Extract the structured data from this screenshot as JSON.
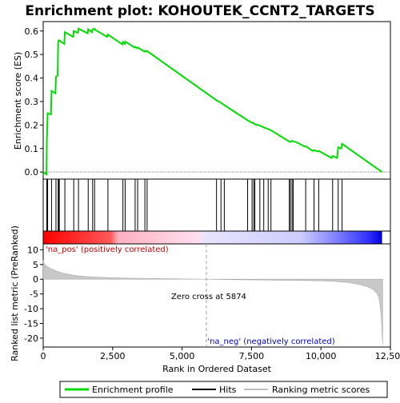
{
  "chart_data": {
    "type": "line",
    "title": "Enrichment plot: KOHOUTEK_CCNT2_TARGETS",
    "xlabel": "Rank in Ordered Dataset",
    "xlim": [
      0,
      12500
    ],
    "x_ticks": [
      0,
      2500,
      5000,
      7500,
      10000,
      12500
    ],
    "x_tick_labels": [
      "0",
      "2,500",
      "5,000",
      "7,500",
      "10,000",
      "12,500"
    ],
    "es_panel": {
      "ylabel": "Enrichment score (ES)",
      "ylim": [
        -0.03,
        0.64
      ],
      "y_ticks": [
        0.0,
        0.1,
        0.2,
        0.3,
        0.4,
        0.5,
        0.6
      ],
      "y_tick_labels": [
        "0.0",
        "0.1",
        "0.2",
        "0.3",
        "0.4",
        "0.5",
        "0.6"
      ],
      "series": [
        {
          "name": "Enrichment profile",
          "color": "#00dd00",
          "x": [
            0,
            60,
            120,
            130,
            160,
            280,
            300,
            440,
            460,
            520,
            540,
            560,
            580,
            760,
            780,
            1080,
            1100,
            1250,
            1270,
            1600,
            1620,
            1760,
            1780,
            1850,
            1870,
            2300,
            2330,
            2850,
            2870,
            2930,
            2950,
            3290,
            3310,
            3380,
            3400,
            3640,
            3660,
            3720,
            3740,
            6240,
            6400,
            6520,
            7360,
            7520,
            7580,
            7620,
            7800,
            7940,
            8100,
            8200,
            8860,
            8900,
            8960,
            9000,
            9100,
            9420,
            9450,
            9700,
            9750,
            9880,
            9920,
            10380,
            10420,
            10580,
            10620,
            10730,
            10760,
            12200
          ],
          "y": [
            0.0,
            -0.005,
            -0.01,
            0.12,
            0.25,
            0.245,
            0.345,
            0.335,
            0.405,
            0.41,
            0.555,
            0.56,
            0.56,
            0.545,
            0.595,
            0.575,
            0.6,
            0.592,
            0.61,
            0.59,
            0.607,
            0.595,
            0.607,
            0.61,
            0.605,
            0.575,
            0.585,
            0.543,
            0.553,
            0.545,
            0.555,
            0.53,
            0.533,
            0.527,
            0.53,
            0.513,
            0.515,
            0.512,
            0.515,
            0.305,
            0.295,
            0.285,
            0.22,
            0.21,
            0.208,
            0.203,
            0.198,
            0.19,
            0.183,
            0.178,
            0.13,
            0.128,
            0.133,
            0.13,
            0.128,
            0.108,
            0.11,
            0.09,
            0.093,
            0.088,
            0.09,
            0.06,
            0.068,
            0.06,
            0.105,
            0.1,
            0.12,
            0.0
          ]
        }
      ]
    },
    "hits": {
      "name": "Hits",
      "x": [
        130,
        160,
        300,
        460,
        540,
        560,
        580,
        780,
        1100,
        1270,
        1620,
        1780,
        1850,
        2330,
        2870,
        2950,
        3310,
        3400,
        3660,
        3740,
        6240,
        6400,
        6520,
        7360,
        7520,
        7580,
        7620,
        7800,
        7940,
        8100,
        8200,
        8860,
        8900,
        8960,
        9000,
        9450,
        9750,
        9920,
        10420,
        10620,
        10760
      ]
    },
    "rank_bar": {
      "label_pos": "'na_pos' (positively correlated)",
      "label_neg": "'na_neg' (negatively correlated)",
      "colors": [
        "#ff0000",
        "#ffd5d5",
        "#d5d5ff",
        "#0000ff"
      ]
    },
    "metric_panel": {
      "ylabel": "Ranked list metric (PreRanked)",
      "ylim": [
        -23,
        12
      ],
      "y_ticks": [
        10,
        5,
        0,
        -5,
        -10,
        -15,
        -20
      ],
      "y_tick_labels": [
        "10",
        "5",
        "0",
        "-5",
        "-10",
        "-15",
        "-20"
      ],
      "series": [
        {
          "name": "Ranking metric scores",
          "color": "#c0c0c0",
          "x": [
            0,
            40,
            100,
            200,
            300,
            500,
            700,
            1000,
            1300,
            1600,
            2000,
            2500,
            3000,
            3500,
            4000,
            5000,
            5874,
            7000,
            8000,
            9000,
            10000,
            10500,
            11000,
            11400,
            11700,
            11900,
            12000,
            12080,
            12120,
            12150,
            12180,
            12200,
            12220
          ],
          "y": [
            6.5,
            5.2,
            4.6,
            4.0,
            3.5,
            2.7,
            2.1,
            1.5,
            1.1,
            0.85,
            0.65,
            0.5,
            0.4,
            0.3,
            0.22,
            0.1,
            0.0,
            -0.15,
            -0.25,
            -0.35,
            -0.55,
            -0.75,
            -1.1,
            -1.8,
            -2.6,
            -3.6,
            -4.6,
            -6.0,
            -8.0,
            -10.5,
            -14.0,
            -18.0,
            -22.0
          ]
        }
      ],
      "zero_cross_rank": 5874,
      "zero_cross_label": "Zero cross at 5874"
    },
    "legend": {
      "entries": [
        "Enrichment profile",
        "Hits",
        "Ranking metric scores"
      ],
      "colors": [
        "#00dd00",
        "#000000",
        "#c0c0c0"
      ],
      "placement": "bottom"
    }
  }
}
